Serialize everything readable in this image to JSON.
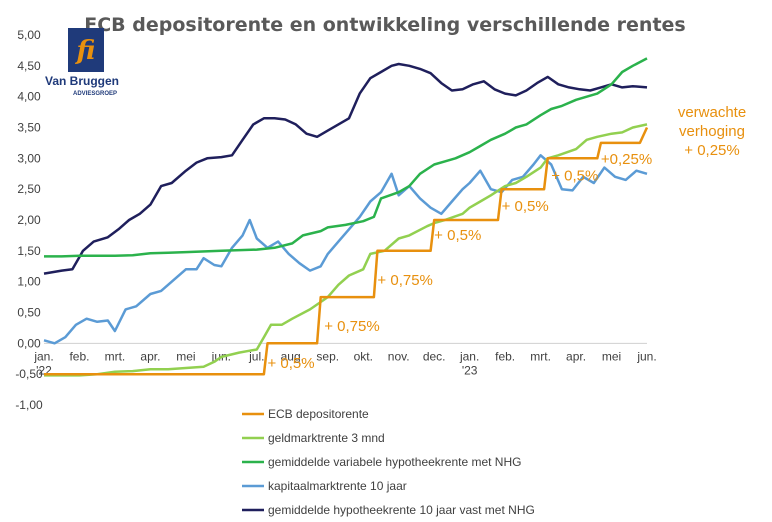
{
  "chart_data": {
    "type": "line",
    "title": "ECB depositorente en ontwikkeling verschillende rentes",
    "logo": {
      "name": "Van Bruggen",
      "tagline": "ADVIESGROEP",
      "monogram": "fi"
    },
    "ylim": [
      -1.0,
      5.0
    ],
    "y_ticks": [
      "5,00",
      "4,50",
      "4,00",
      "3,50",
      "3,00",
      "2,50",
      "2,00",
      "1,50",
      "1,00",
      "0,50",
      "0,00",
      "-0,50",
      "-1,00"
    ],
    "y_tick_values": [
      5,
      4.5,
      4,
      3.5,
      3,
      2.5,
      2,
      1.5,
      1,
      0.5,
      0,
      -0.5,
      -1
    ],
    "xlim": [
      0,
      17
    ],
    "x_ticks": [
      {
        "label": "jan.",
        "sub": "'22",
        "x": 0
      },
      {
        "label": "feb.",
        "sub": "",
        "x": 1
      },
      {
        "label": "mrt.",
        "sub": "",
        "x": 2
      },
      {
        "label": "apr.",
        "sub": "",
        "x": 3
      },
      {
        "label": "mei",
        "sub": "",
        "x": 4
      },
      {
        "label": "jun.",
        "sub": "",
        "x": 5
      },
      {
        "label": "jul.",
        "sub": "",
        "x": 6
      },
      {
        "label": "aug.",
        "sub": "",
        "x": 7
      },
      {
        "label": "sep.",
        "sub": "",
        "x": 8
      },
      {
        "label": "okt.",
        "sub": "",
        "x": 9
      },
      {
        "label": "nov.",
        "sub": "",
        "x": 10
      },
      {
        "label": "dec.",
        "sub": "",
        "x": 11
      },
      {
        "label": "jan.",
        "sub": "'23",
        "x": 12
      },
      {
        "label": "feb.",
        "sub": "",
        "x": 13
      },
      {
        "label": "mrt.",
        "sub": "",
        "x": 14
      },
      {
        "label": "apr.",
        "sub": "",
        "x": 15
      },
      {
        "label": "mei",
        "sub": "",
        "x": 16
      },
      {
        "label": "jun.",
        "sub": "",
        "x": 17
      }
    ],
    "series": [
      {
        "name": "ECB depositorente",
        "color": "#E8900E",
        "points": [
          [
            0,
            -0.5
          ],
          [
            6.2,
            -0.5
          ],
          [
            6.3,
            0
          ],
          [
            7.7,
            0
          ],
          [
            7.8,
            0.75
          ],
          [
            9.3,
            0.75
          ],
          [
            9.4,
            1.5
          ],
          [
            10.9,
            1.5
          ],
          [
            11.0,
            2.0
          ],
          [
            12.8,
            2.0
          ],
          [
            12.9,
            2.5
          ],
          [
            14.1,
            2.5
          ],
          [
            14.2,
            3.0
          ],
          [
            15.6,
            3.0
          ],
          [
            15.7,
            3.25
          ],
          [
            16.8,
            3.25
          ],
          [
            17.0,
            3.5
          ]
        ]
      },
      {
        "name": "geldmarktrente 3 mnd",
        "color": "#92D050",
        "points": [
          [
            0,
            -0.52
          ],
          [
            1,
            -0.52
          ],
          [
            1.5,
            -0.5
          ],
          [
            2,
            -0.46
          ],
          [
            2.5,
            -0.45
          ],
          [
            3,
            -0.42
          ],
          [
            3.5,
            -0.42
          ],
          [
            4,
            -0.4
          ],
          [
            4.5,
            -0.38
          ],
          [
            4.8,
            -0.3
          ],
          [
            5,
            -0.22
          ],
          [
            5.5,
            -0.15
          ],
          [
            5.8,
            -0.12
          ],
          [
            6,
            -0.1
          ],
          [
            6.2,
            0.1
          ],
          [
            6.4,
            0.3
          ],
          [
            6.7,
            0.3
          ],
          [
            7,
            0.4
          ],
          [
            7.5,
            0.55
          ],
          [
            8,
            0.75
          ],
          [
            8.3,
            0.95
          ],
          [
            8.6,
            1.1
          ],
          [
            9,
            1.2
          ],
          [
            9.2,
            1.45
          ],
          [
            9.6,
            1.5
          ],
          [
            10,
            1.7
          ],
          [
            10.3,
            1.75
          ],
          [
            10.8,
            1.9
          ],
          [
            11,
            1.95
          ],
          [
            11.3,
            2.0
          ],
          [
            11.8,
            2.1
          ],
          [
            12,
            2.2
          ],
          [
            12.3,
            2.3
          ],
          [
            12.6,
            2.4
          ],
          [
            13,
            2.55
          ],
          [
            13.3,
            2.6
          ],
          [
            13.6,
            2.7
          ],
          [
            14,
            2.85
          ],
          [
            14.2,
            3.0
          ],
          [
            14.5,
            3.05
          ],
          [
            15,
            3.15
          ],
          [
            15.3,
            3.3
          ],
          [
            15.6,
            3.35
          ],
          [
            16,
            3.4
          ],
          [
            16.3,
            3.42
          ],
          [
            16.6,
            3.5
          ],
          [
            17,
            3.55
          ]
        ]
      },
      {
        "name": "gemiddelde variabele hypotheekrente met NHG",
        "color": "#2BB24C",
        "points": [
          [
            0,
            1.41
          ],
          [
            0.5,
            1.41
          ],
          [
            1,
            1.42
          ],
          [
            2,
            1.42
          ],
          [
            2.5,
            1.43
          ],
          [
            3,
            1.46
          ],
          [
            3.5,
            1.47
          ],
          [
            4,
            1.48
          ],
          [
            5,
            1.5
          ],
          [
            6,
            1.52
          ],
          [
            6.5,
            1.55
          ],
          [
            7,
            1.62
          ],
          [
            7.3,
            1.75
          ],
          [
            7.8,
            1.82
          ],
          [
            8,
            1.88
          ],
          [
            8.5,
            1.92
          ],
          [
            9,
            1.98
          ],
          [
            9.3,
            2.05
          ],
          [
            9.5,
            2.35
          ],
          [
            10,
            2.45
          ],
          [
            10.3,
            2.55
          ],
          [
            10.6,
            2.75
          ],
          [
            11,
            2.9
          ],
          [
            11.3,
            2.95
          ],
          [
            11.6,
            3.0
          ],
          [
            12,
            3.1
          ],
          [
            12.3,
            3.2
          ],
          [
            12.6,
            3.3
          ],
          [
            13,
            3.4
          ],
          [
            13.3,
            3.5
          ],
          [
            13.6,
            3.55
          ],
          [
            14,
            3.7
          ],
          [
            14.3,
            3.8
          ],
          [
            14.6,
            3.85
          ],
          [
            15,
            3.95
          ],
          [
            15.3,
            4.0
          ],
          [
            15.6,
            4.05
          ],
          [
            16,
            4.2
          ],
          [
            16.3,
            4.4
          ],
          [
            16.6,
            4.5
          ],
          [
            17,
            4.62
          ]
        ]
      },
      {
        "name": "kapitaalmarktrente 10 jaar",
        "color": "#5B9BD5",
        "points": [
          [
            0,
            0.05
          ],
          [
            0.3,
            0.0
          ],
          [
            0.6,
            0.1
          ],
          [
            0.9,
            0.3
          ],
          [
            1.2,
            0.4
          ],
          [
            1.5,
            0.35
          ],
          [
            1.8,
            0.37
          ],
          [
            2.0,
            0.2
          ],
          [
            2.3,
            0.55
          ],
          [
            2.6,
            0.6
          ],
          [
            3,
            0.8
          ],
          [
            3.3,
            0.85
          ],
          [
            3.6,
            1.0
          ],
          [
            4,
            1.2
          ],
          [
            4.3,
            1.2
          ],
          [
            4.5,
            1.38
          ],
          [
            4.8,
            1.27
          ],
          [
            5,
            1.25
          ],
          [
            5.3,
            1.55
          ],
          [
            5.6,
            1.75
          ],
          [
            5.8,
            2.0
          ],
          [
            6,
            1.7
          ],
          [
            6.3,
            1.55
          ],
          [
            6.6,
            1.65
          ],
          [
            6.9,
            1.45
          ],
          [
            7.2,
            1.3
          ],
          [
            7.5,
            1.18
          ],
          [
            7.8,
            1.25
          ],
          [
            8,
            1.45
          ],
          [
            8.3,
            1.65
          ],
          [
            8.6,
            1.85
          ],
          [
            8.9,
            2.05
          ],
          [
            9.2,
            2.3
          ],
          [
            9.5,
            2.45
          ],
          [
            9.8,
            2.75
          ],
          [
            10,
            2.4
          ],
          [
            10.3,
            2.55
          ],
          [
            10.6,
            2.35
          ],
          [
            10.9,
            2.2
          ],
          [
            11.2,
            2.1
          ],
          [
            11.5,
            2.3
          ],
          [
            11.8,
            2.5
          ],
          [
            12,
            2.6
          ],
          [
            12.3,
            2.8
          ],
          [
            12.6,
            2.5
          ],
          [
            12.9,
            2.45
          ],
          [
            13.2,
            2.65
          ],
          [
            13.5,
            2.7
          ],
          [
            13.8,
            2.9
          ],
          [
            14,
            3.05
          ],
          [
            14.3,
            2.9
          ],
          [
            14.6,
            2.5
          ],
          [
            14.9,
            2.48
          ],
          [
            15.2,
            2.7
          ],
          [
            15.5,
            2.6
          ],
          [
            15.8,
            2.85
          ],
          [
            16.1,
            2.7
          ],
          [
            16.4,
            2.65
          ],
          [
            16.7,
            2.8
          ],
          [
            17,
            2.75
          ]
        ]
      },
      {
        "name": "gemiddelde hypotheekrente 10 jaar vast met NHG",
        "color": "#1F1F5C",
        "points": [
          [
            0,
            1.13
          ],
          [
            0.5,
            1.18
          ],
          [
            0.8,
            1.2
          ],
          [
            1.1,
            1.5
          ],
          [
            1.4,
            1.65
          ],
          [
            1.8,
            1.72
          ],
          [
            2.1,
            1.85
          ],
          [
            2.4,
            2.0
          ],
          [
            2.7,
            2.1
          ],
          [
            3,
            2.25
          ],
          [
            3.3,
            2.55
          ],
          [
            3.6,
            2.6
          ],
          [
            4,
            2.8
          ],
          [
            4.3,
            2.93
          ],
          [
            4.6,
            3.0
          ],
          [
            5,
            3.02
          ],
          [
            5.3,
            3.05
          ],
          [
            5.6,
            3.3
          ],
          [
            5.9,
            3.55
          ],
          [
            6.2,
            3.65
          ],
          [
            6.5,
            3.65
          ],
          [
            6.8,
            3.63
          ],
          [
            7.1,
            3.55
          ],
          [
            7.4,
            3.4
          ],
          [
            7.7,
            3.35
          ],
          [
            8,
            3.45
          ],
          [
            8.3,
            3.55
          ],
          [
            8.6,
            3.65
          ],
          [
            8.9,
            4.05
          ],
          [
            9.2,
            4.3
          ],
          [
            9.5,
            4.4
          ],
          [
            9.8,
            4.5
          ],
          [
            10,
            4.53
          ],
          [
            10.3,
            4.5
          ],
          [
            10.6,
            4.45
          ],
          [
            10.9,
            4.38
          ],
          [
            11.2,
            4.22
          ],
          [
            11.5,
            4.1
          ],
          [
            11.8,
            4.12
          ],
          [
            12.1,
            4.2
          ],
          [
            12.4,
            4.25
          ],
          [
            12.7,
            4.12
          ],
          [
            13,
            4.05
          ],
          [
            13.3,
            4.02
          ],
          [
            13.6,
            4.1
          ],
          [
            13.9,
            4.22
          ],
          [
            14.2,
            4.32
          ],
          [
            14.5,
            4.2
          ],
          [
            14.8,
            4.15
          ],
          [
            15.1,
            4.12
          ],
          [
            15.4,
            4.1
          ],
          [
            15.7,
            4.15
          ],
          [
            16,
            4.2
          ],
          [
            16.3,
            4.15
          ],
          [
            16.6,
            4.17
          ],
          [
            17,
            4.15
          ]
        ]
      }
    ],
    "annotations": [
      {
        "text": "+ 0,5%",
        "at": [
          6.3,
          -0.32
        ],
        "anchor": "start"
      },
      {
        "text": "+ 0,75%",
        "at": [
          7.9,
          0.28
        ],
        "anchor": "start"
      },
      {
        "text": "+ 0,75%",
        "at": [
          9.4,
          1.03
        ],
        "anchor": "start"
      },
      {
        "text": "+ 0,5%",
        "at": [
          11.0,
          1.76
        ],
        "anchor": "start"
      },
      {
        "text": "+ 0,5%",
        "at": [
          12.9,
          2.23
        ],
        "anchor": "start"
      },
      {
        "text": "+ 0,5%",
        "at": [
          14.3,
          2.72
        ],
        "anchor": "start"
      },
      {
        "text": "+0,25%",
        "at": [
          15.7,
          2.99
        ],
        "anchor": "start"
      }
    ],
    "side_note": [
      "verwachte",
      "verhoging",
      "+ 0,25%"
    ]
  }
}
